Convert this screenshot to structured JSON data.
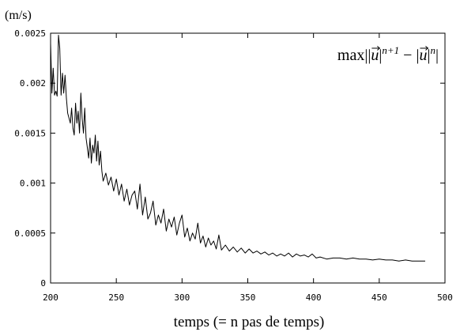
{
  "chart_data": {
    "type": "line",
    "unit_label": "(m/s)",
    "xlabel": "temps  (= n pas de temps)",
    "ylabel": "",
    "xlim": [
      200,
      500
    ],
    "ylim": [
      0,
      0.0025
    ],
    "x_ticks": [
      "200",
      "250",
      "300",
      "350",
      "400",
      "450",
      "500"
    ],
    "y_ticks": [
      "0",
      "0.0005",
      "0.001",
      "0.0015",
      "0.002",
      "0.0025"
    ],
    "legend": {
      "prefix": "max",
      "expression_parts": [
        "||",
        "u",
        "|",
        "n+1",
        " − |",
        "u",
        "|",
        "n",
        "|"
      ],
      "placement": "top-right"
    },
    "grid": false,
    "series": [
      {
        "name": "max||u|^{n+1} − |u|^{n}|",
        "x": [
          200,
          201,
          202,
          203,
          204,
          205,
          206,
          207,
          208,
          209,
          210,
          211,
          212,
          213,
          214,
          215,
          216,
          217,
          218,
          219,
          220,
          221,
          222,
          223,
          224,
          225,
          226,
          227,
          228,
          229,
          230,
          231,
          232,
          233,
          234,
          235,
          236,
          237,
          238,
          239,
          240,
          242,
          244,
          246,
          248,
          250,
          252,
          254,
          256,
          258,
          260,
          262,
          264,
          266,
          268,
          270,
          272,
          274,
          276,
          278,
          280,
          282,
          284,
          286,
          288,
          290,
          292,
          294,
          296,
          298,
          300,
          302,
          304,
          306,
          308,
          310,
          312,
          314,
          316,
          318,
          320,
          322,
          324,
          326,
          328,
          330,
          333,
          336,
          339,
          342,
          345,
          348,
          351,
          354,
          357,
          360,
          363,
          366,
          369,
          372,
          375,
          378,
          381,
          384,
          387,
          390,
          393,
          396,
          399,
          402,
          405,
          410,
          415,
          420,
          425,
          430,
          435,
          440,
          445,
          450,
          455,
          460,
          465,
          470,
          475,
          480,
          485
        ],
        "values": [
          0.0024,
          0.0019,
          0.00215,
          0.00188,
          0.00192,
          0.00187,
          0.00248,
          0.00235,
          0.00188,
          0.0021,
          0.0019,
          0.00208,
          0.00185,
          0.0017,
          0.00165,
          0.0016,
          0.00175,
          0.00155,
          0.00148,
          0.0018,
          0.0016,
          0.00172,
          0.0015,
          0.0019,
          0.00165,
          0.0015,
          0.00175,
          0.00145,
          0.00135,
          0.00125,
          0.00145,
          0.0012,
          0.00138,
          0.0013,
          0.00148,
          0.00122,
          0.00142,
          0.00118,
          0.00132,
          0.00112,
          0.00102,
          0.0011,
          0.00098,
          0.00106,
          0.00092,
          0.00104,
          0.00088,
          0.00099,
          0.00082,
          0.00094,
          0.00078,
          0.00088,
          0.00092,
          0.00074,
          0.00099,
          0.00068,
          0.00086,
          0.00064,
          0.0007,
          0.00082,
          0.00058,
          0.00068,
          0.0006,
          0.00074,
          0.00052,
          0.00064,
          0.00056,
          0.00066,
          0.00048,
          0.0006,
          0.00068,
          0.00046,
          0.00055,
          0.00042,
          0.0005,
          0.00044,
          0.0006,
          0.0004,
          0.00047,
          0.00036,
          0.00045,
          0.00038,
          0.00042,
          0.00034,
          0.00048,
          0.00033,
          0.00038,
          0.00032,
          0.00036,
          0.00031,
          0.00035,
          0.0003,
          0.00034,
          0.0003,
          0.00032,
          0.00029,
          0.00031,
          0.00028,
          0.0003,
          0.00027,
          0.00029,
          0.00027,
          0.0003,
          0.00026,
          0.00029,
          0.00027,
          0.00028,
          0.00026,
          0.00029,
          0.00025,
          0.00026,
          0.00024,
          0.00025,
          0.00025,
          0.00024,
          0.00025,
          0.00024,
          0.00024,
          0.00023,
          0.00024,
          0.00023,
          0.00023,
          0.00022,
          0.00023,
          0.00022,
          0.00022,
          0.00022
        ]
      }
    ]
  }
}
